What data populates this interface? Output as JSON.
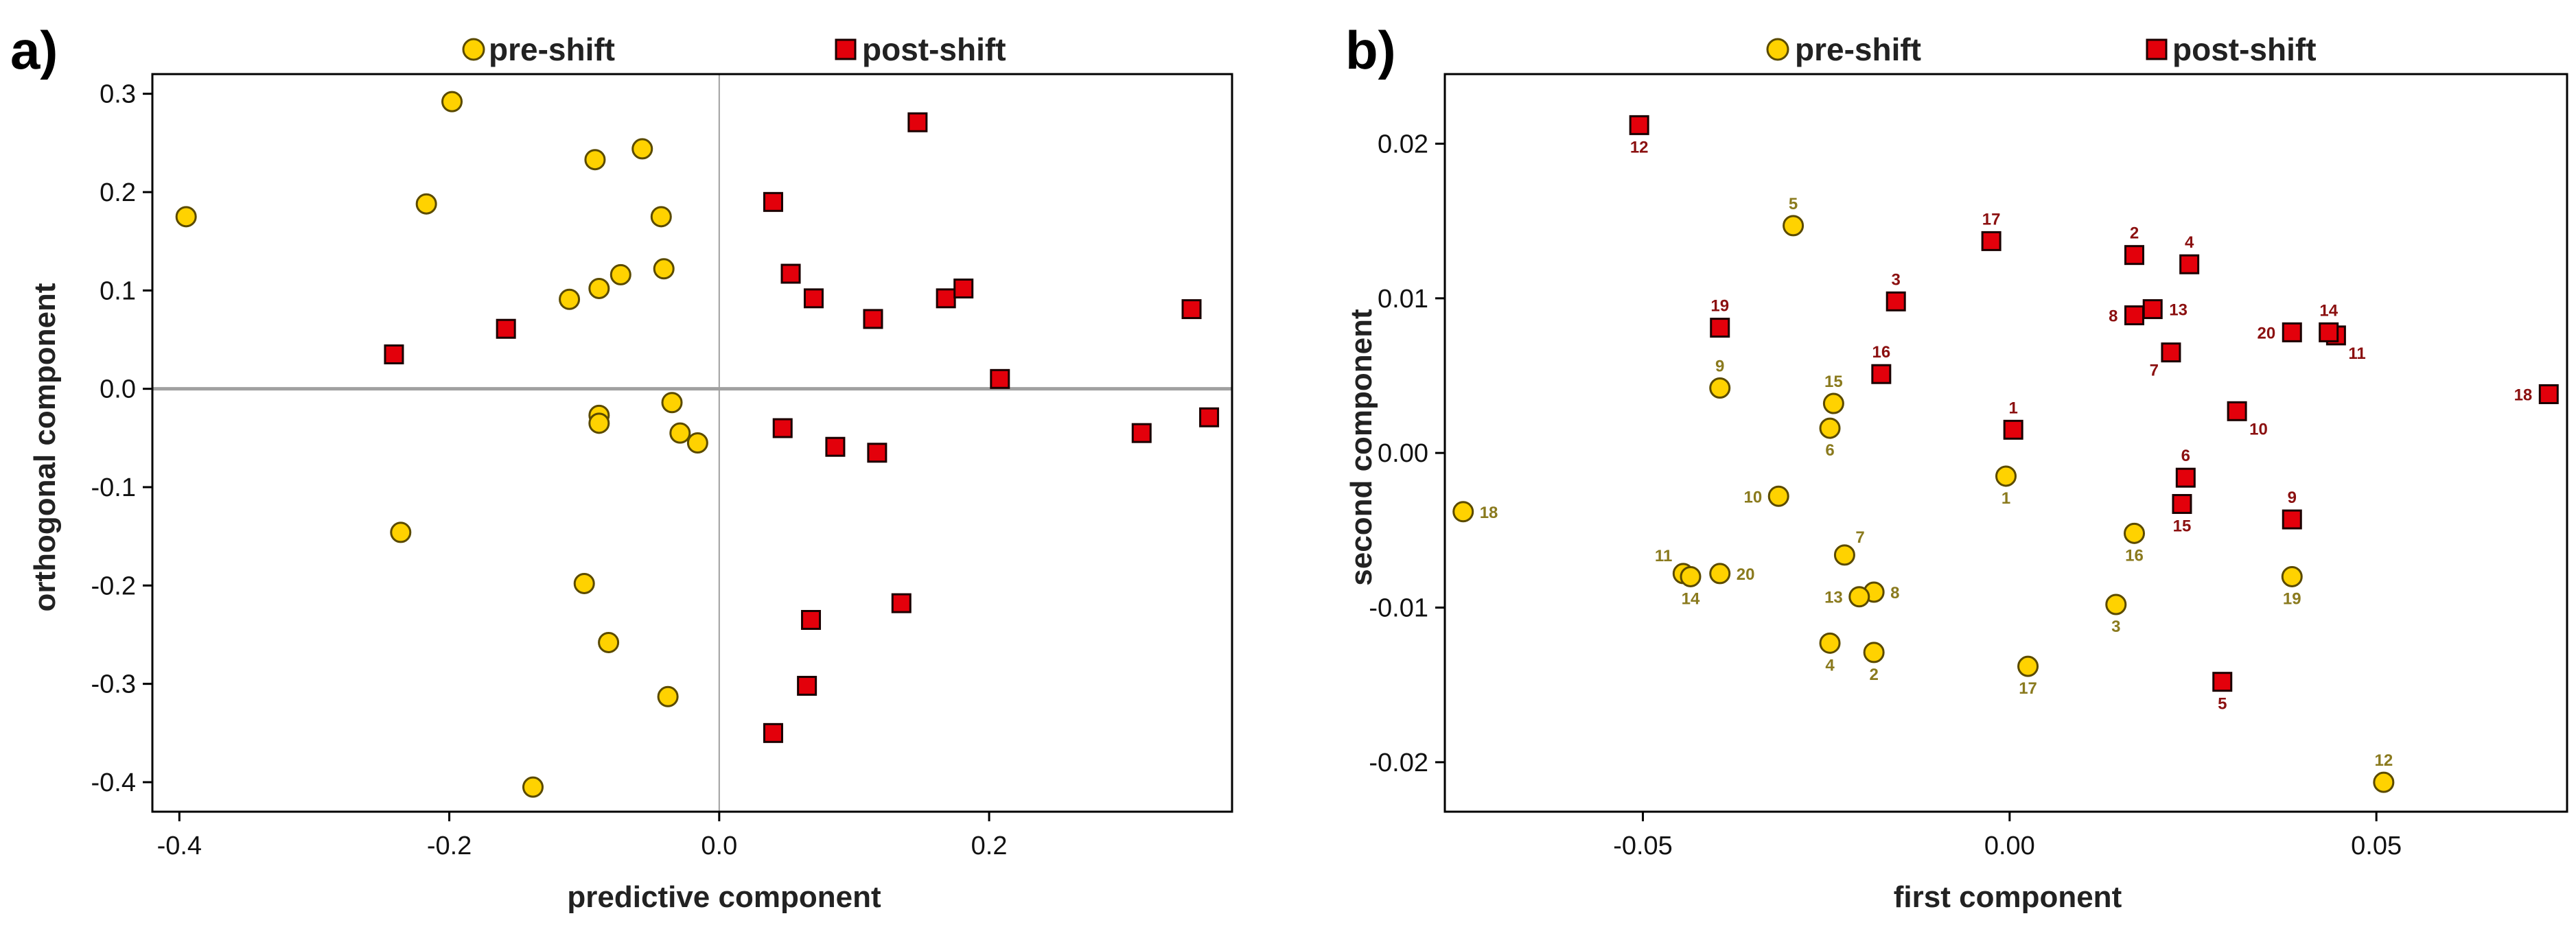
{
  "chart_data": [
    {
      "type": "scatter",
      "panel_label": "a)",
      "xlabel": "predictive component",
      "ylabel": "orthogonal component",
      "xlim": [
        -0.42,
        0.38
      ],
      "ylim": [
        -0.43,
        0.32
      ],
      "xticks": [
        -0.4,
        -0.2,
        0.0,
        0.2
      ],
      "xtick_labels": [
        "-0.4",
        "-0.2",
        "0.0",
        "0.2"
      ],
      "yticks": [
        -0.4,
        -0.3,
        -0.2,
        -0.1,
        0.0,
        0.1,
        0.2,
        0.3
      ],
      "ytick_labels": [
        "-0.4",
        "-0.3",
        "-0.2",
        "-0.1",
        "0.0",
        "0.1",
        "0.2",
        "0.3"
      ],
      "zero_lines": true,
      "legend": [
        "pre-shift",
        "post-shift"
      ],
      "legend_position": "top",
      "series": [
        {
          "name": "pre-shift",
          "marker": "circle",
          "points": [
            {
              "x": -0.395,
              "y": 0.175
            },
            {
              "x": -0.198,
              "y": 0.292
            },
            {
              "x": -0.217,
              "y": 0.188
            },
            {
              "x": -0.092,
              "y": 0.233
            },
            {
              "x": -0.057,
              "y": 0.244
            },
            {
              "x": -0.043,
              "y": 0.175
            },
            {
              "x": -0.041,
              "y": 0.122
            },
            {
              "x": -0.073,
              "y": 0.116
            },
            {
              "x": -0.089,
              "y": 0.102
            },
            {
              "x": -0.111,
              "y": 0.091
            },
            {
              "x": -0.089,
              "y": -0.027
            },
            {
              "x": -0.089,
              "y": -0.035
            },
            {
              "x": -0.035,
              "y": -0.014
            },
            {
              "x": -0.029,
              "y": -0.045
            },
            {
              "x": -0.016,
              "y": -0.055
            },
            {
              "x": -0.236,
              "y": -0.146
            },
            {
              "x": -0.1,
              "y": -0.198
            },
            {
              "x": -0.082,
              "y": -0.258
            },
            {
              "x": -0.038,
              "y": -0.313
            },
            {
              "x": -0.138,
              "y": -0.405
            }
          ]
        },
        {
          "name": "post-shift",
          "marker": "square",
          "points": [
            {
              "x": 0.147,
              "y": 0.271
            },
            {
              "x": 0.04,
              "y": 0.19
            },
            {
              "x": 0.053,
              "y": 0.117
            },
            {
              "x": 0.07,
              "y": 0.092
            },
            {
              "x": 0.114,
              "y": 0.071
            },
            {
              "x": 0.168,
              "y": 0.092
            },
            {
              "x": 0.181,
              "y": 0.102
            },
            {
              "x": 0.35,
              "y": 0.081
            },
            {
              "x": -0.158,
              "y": 0.061
            },
            {
              "x": -0.241,
              "y": 0.035
            },
            {
              "x": 0.208,
              "y": 0.01
            },
            {
              "x": 0.047,
              "y": -0.04
            },
            {
              "x": 0.086,
              "y": -0.059
            },
            {
              "x": 0.117,
              "y": -0.065
            },
            {
              "x": 0.313,
              "y": -0.045
            },
            {
              "x": 0.363,
              "y": -0.029
            },
            {
              "x": 0.068,
              "y": -0.235
            },
            {
              "x": 0.135,
              "y": -0.218
            },
            {
              "x": 0.065,
              "y": -0.302
            },
            {
              "x": 0.04,
              "y": -0.35
            }
          ]
        }
      ]
    },
    {
      "type": "scatter",
      "panel_label": "b)",
      "xlabel": "first component",
      "ylabel": "second component",
      "xlim": [
        -0.077,
        0.076
      ],
      "ylim": [
        -0.0232,
        0.0245
      ],
      "xticks": [
        -0.05,
        0.0,
        0.05
      ],
      "xtick_labels": [
        "-0.05",
        "0.00",
        "0.05"
      ],
      "yticks": [
        -0.02,
        -0.01,
        0.0,
        0.01,
        0.02
      ],
      "ytick_labels": [
        "-0.02",
        "-0.01",
        "0.00",
        "0.01",
        "0.02"
      ],
      "zero_lines": false,
      "legend": [
        "pre-shift",
        "post-shift"
      ],
      "legend_position": "top",
      "series": [
        {
          "name": "pre-shift",
          "marker": "circle",
          "points": [
            {
              "x": -0.0005,
              "y": -0.0015,
              "label": "1",
              "label_pos": "below"
            },
            {
              "x": -0.0185,
              "y": -0.0129,
              "label": "2",
              "label_pos": "below"
            },
            {
              "x": 0.0145,
              "y": -0.0098,
              "label": "3",
              "label_pos": "below"
            },
            {
              "x": -0.0245,
              "y": -0.0123,
              "label": "4",
              "label_pos": "below"
            },
            {
              "x": -0.0295,
              "y": 0.0147,
              "label": "5",
              "label_pos": "above"
            },
            {
              "x": -0.0245,
              "y": 0.0016,
              "label": "6",
              "label_pos": "below"
            },
            {
              "x": -0.0225,
              "y": -0.0066,
              "label": "7",
              "label_pos": "above-right"
            },
            {
              "x": -0.0185,
              "y": -0.009,
              "label": "8",
              "label_pos": "right"
            },
            {
              "x": -0.0395,
              "y": 0.0042,
              "label": "9",
              "label_pos": "above"
            },
            {
              "x": -0.0315,
              "y": -0.0028,
              "label": "10",
              "label_pos": "left"
            },
            {
              "x": -0.0445,
              "y": -0.0078,
              "label": "11",
              "label_pos": "above-left"
            },
            {
              "x": 0.051,
              "y": -0.0213,
              "label": "12",
              "label_pos": "above"
            },
            {
              "x": -0.0205,
              "y": -0.0093,
              "label": "13",
              "label_pos": "left"
            },
            {
              "x": -0.0435,
              "y": -0.008,
              "label": "14",
              "label_pos": "below"
            },
            {
              "x": -0.024,
              "y": 0.0032,
              "label": "15",
              "label_pos": "above"
            },
            {
              "x": 0.017,
              "y": -0.0052,
              "label": "16",
              "label_pos": "below"
            },
            {
              "x": 0.0025,
              "y": -0.0138,
              "label": "17",
              "label_pos": "below"
            },
            {
              "x": -0.0745,
              "y": -0.0038,
              "label": "18",
              "label_pos": "right"
            },
            {
              "x": 0.0385,
              "y": -0.008,
              "label": "19",
              "label_pos": "below"
            },
            {
              "x": -0.0395,
              "y": -0.0078,
              "label": "20",
              "label_pos": "right"
            }
          ]
        },
        {
          "name": "post-shift",
          "marker": "square",
          "points": [
            {
              "x": 0.0005,
              "y": 0.0015,
              "label": "1",
              "label_pos": "above"
            },
            {
              "x": 0.017,
              "y": 0.0128,
              "label": "2",
              "label_pos": "above"
            },
            {
              "x": -0.0155,
              "y": 0.0098,
              "label": "3",
              "label_pos": "above"
            },
            {
              "x": 0.0245,
              "y": 0.0122,
              "label": "4",
              "label_pos": "above"
            },
            {
              "x": 0.029,
              "y": -0.0148,
              "label": "5",
              "label_pos": "below"
            },
            {
              "x": 0.024,
              "y": -0.0016,
              "label": "6",
              "label_pos": "above"
            },
            {
              "x": 0.022,
              "y": 0.0065,
              "label": "7",
              "label_pos": "below-left"
            },
            {
              "x": 0.017,
              "y": 0.0089,
              "label": "8",
              "label_pos": "left"
            },
            {
              "x": 0.0385,
              "y": -0.0043,
              "label": "9",
              "label_pos": "above"
            },
            {
              "x": 0.031,
              "y": 0.0027,
              "label": "10",
              "label_pos": "below-right"
            },
            {
              "x": 0.0445,
              "y": 0.0076,
              "label": "11",
              "label_pos": "below-right"
            },
            {
              "x": -0.0505,
              "y": 0.0212,
              "label": "12",
              "label_pos": "below"
            },
            {
              "x": 0.0195,
              "y": 0.0093,
              "label": "13",
              "label_pos": "right"
            },
            {
              "x": 0.0435,
              "y": 0.0078,
              "label": "14",
              "label_pos": "above"
            },
            {
              "x": 0.0235,
              "y": -0.0033,
              "label": "15",
              "label_pos": "below"
            },
            {
              "x": -0.0175,
              "y": 0.0051,
              "label": "16",
              "label_pos": "above"
            },
            {
              "x": -0.0025,
              "y": 0.0137,
              "label": "17",
              "label_pos": "above"
            },
            {
              "x": 0.0735,
              "y": 0.0038,
              "label": "18",
              "label_pos": "left"
            },
            {
              "x": -0.0395,
              "y": 0.0081,
              "label": "19",
              "label_pos": "above"
            },
            {
              "x": 0.0385,
              "y": 0.0078,
              "label": "20",
              "label_pos": "left"
            }
          ]
        }
      ]
    }
  ],
  "colors": {
    "pre_fill": "#ffd200",
    "pre_stroke": "#5a4a00",
    "post_fill": "#e3000b",
    "post_stroke": "#1a0000",
    "zero_line": "#a0a0a0",
    "axis": "#000000"
  }
}
